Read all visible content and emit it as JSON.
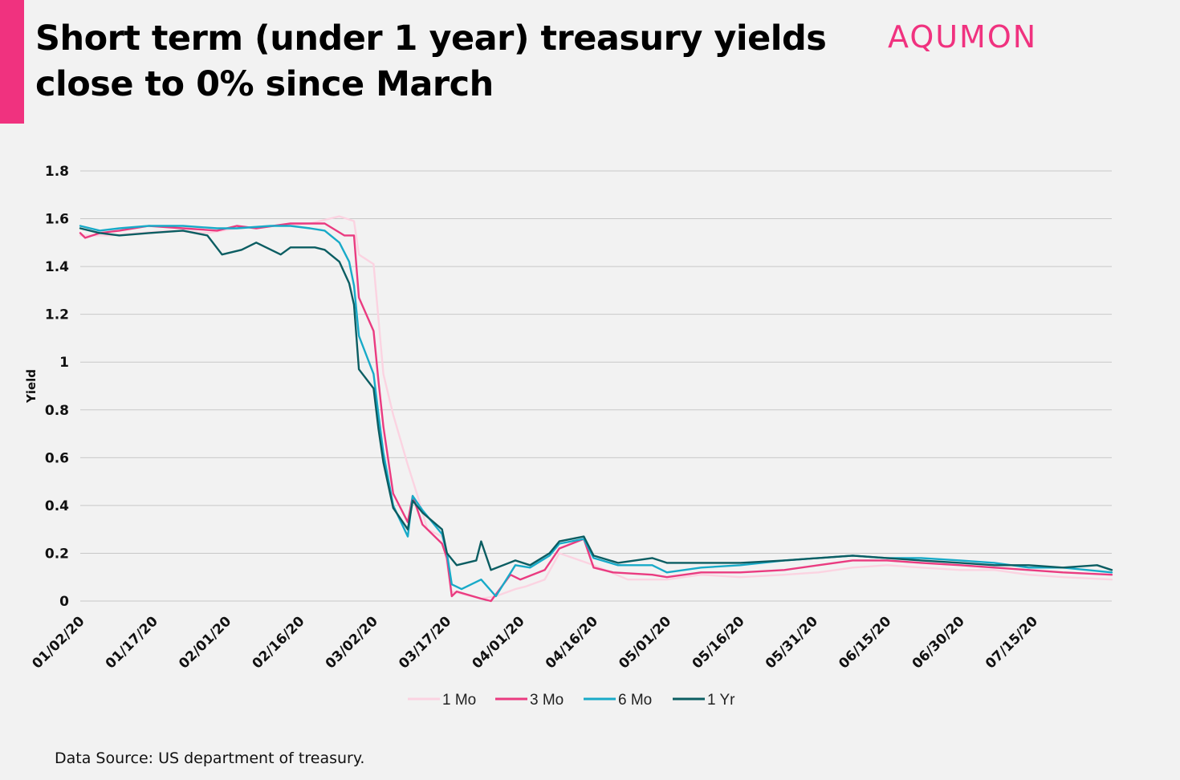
{
  "header": {
    "title": "Short term (under 1 year) treasury yields close to 0% since March",
    "logo": "AQUMON"
  },
  "footer": {
    "source": "Data Source: US department of treasury."
  },
  "colors": {
    "accent": "#f0327f",
    "1 Mo": "#fbd3e1",
    "3 Mo": "#ea3b80",
    "6 Mo": "#18aac8",
    "1 Yr": "#0b5d62",
    "grid": "#c8c8c8"
  },
  "chart_data": {
    "type": "line",
    "title": "Short term (under 1 year) treasury yields close to 0% since March",
    "xlabel": "",
    "ylabel": "Yield",
    "ylim": [
      0,
      1.8
    ],
    "yticks": [
      "0",
      "0.2",
      "0.4",
      "0.6",
      "0.8",
      "1",
      "1.2",
      "1.4",
      "1.6",
      "1.8"
    ],
    "xticks": [
      "01/02/20",
      "01/17/20",
      "02/01/20",
      "02/16/20",
      "03/02/20",
      "03/17/20",
      "04/01/20",
      "04/16/20",
      "05/01/20",
      "05/16/20",
      "05/31/20",
      "06/15/20",
      "06/30/20",
      "07/15/20"
    ],
    "xrange": [
      "01/02/20",
      "07/31/20"
    ],
    "grid": "horizontal",
    "legend_position": "bottom",
    "series": [
      {
        "name": "1 Mo",
        "points": [
          [
            "01/02/20",
            1.53
          ],
          [
            "01/08/20",
            1.53
          ],
          [
            "01/14/20",
            1.54
          ],
          [
            "01/21/20",
            1.55
          ],
          [
            "01/28/20",
            1.54
          ],
          [
            "02/03/20",
            1.56
          ],
          [
            "02/10/20",
            1.57
          ],
          [
            "02/18/20",
            1.58
          ],
          [
            "02/24/20",
            1.61
          ],
          [
            "02/27/20",
            1.59
          ],
          [
            "02/28/20",
            1.45
          ],
          [
            "03/02/20",
            1.41
          ],
          [
            "03/04/20",
            0.95
          ],
          [
            "03/06/20",
            0.78
          ],
          [
            "03/09/20",
            0.57
          ],
          [
            "03/11/20",
            0.44
          ],
          [
            "03/13/20",
            0.3
          ],
          [
            "03/16/20",
            0.27
          ],
          [
            "03/18/20",
            0.04
          ],
          [
            "03/24/20",
            0.01
          ],
          [
            "03/27/20",
            0.02
          ],
          [
            "03/31/20",
            0.05
          ],
          [
            "04/02/20",
            0.06
          ],
          [
            "04/06/20",
            0.09
          ],
          [
            "04/09/20",
            0.2
          ],
          [
            "04/16/20",
            0.15
          ],
          [
            "04/23/20",
            0.09
          ],
          [
            "05/01/20",
            0.09
          ],
          [
            "05/08/20",
            0.11
          ],
          [
            "05/16/20",
            0.1
          ],
          [
            "05/25/20",
            0.11
          ],
          [
            "06/01/20",
            0.12
          ],
          [
            "06/08/20",
            0.14
          ],
          [
            "06/15/20",
            0.15
          ],
          [
            "06/22/20",
            0.14
          ],
          [
            "06/30/20",
            0.13
          ],
          [
            "07/07/20",
            0.13
          ],
          [
            "07/14/20",
            0.11
          ],
          [
            "07/21/20",
            0.1
          ],
          [
            "07/31/20",
            0.09
          ]
        ]
      },
      {
        "name": "3 Mo",
        "points": [
          [
            "01/02/20",
            1.54
          ],
          [
            "01/03/20",
            1.52
          ],
          [
            "01/06/20",
            1.54
          ],
          [
            "01/10/20",
            1.55
          ],
          [
            "01/16/20",
            1.57
          ],
          [
            "01/23/20",
            1.56
          ],
          [
            "01/30/20",
            1.55
          ],
          [
            "02/03/20",
            1.57
          ],
          [
            "02/07/20",
            1.56
          ],
          [
            "02/14/20",
            1.58
          ],
          [
            "02/18/20",
            1.58
          ],
          [
            "02/21/20",
            1.58
          ],
          [
            "02/25/20",
            1.53
          ],
          [
            "02/27/20",
            1.53
          ],
          [
            "02/28/20",
            1.27
          ],
          [
            "03/02/20",
            1.13
          ],
          [
            "03/03/20",
            0.92
          ],
          [
            "03/04/20",
            0.73
          ],
          [
            "03/06/20",
            0.45
          ],
          [
            "03/09/20",
            0.33
          ],
          [
            "03/10/20",
            0.44
          ],
          [
            "03/12/20",
            0.32
          ],
          [
            "03/16/20",
            0.24
          ],
          [
            "03/17/20",
            0.18
          ],
          [
            "03/18/20",
            0.02
          ],
          [
            "03/19/20",
            0.04
          ],
          [
            "03/24/20",
            0.01
          ],
          [
            "03/26/20",
            0.0
          ],
          [
            "03/30/20",
            0.11
          ],
          [
            "04/01/20",
            0.09
          ],
          [
            "04/06/20",
            0.13
          ],
          [
            "04/09/20",
            0.22
          ],
          [
            "04/14/20",
            0.26
          ],
          [
            "04/16/20",
            0.14
          ],
          [
            "04/20/20",
            0.12
          ],
          [
            "04/28/20",
            0.11
          ],
          [
            "05/01/20",
            0.1
          ],
          [
            "05/08/20",
            0.12
          ],
          [
            "05/16/20",
            0.12
          ],
          [
            "05/25/20",
            0.13
          ],
          [
            "06/01/20",
            0.15
          ],
          [
            "06/08/20",
            0.17
          ],
          [
            "06/15/20",
            0.17
          ],
          [
            "06/22/20",
            0.16
          ],
          [
            "06/30/20",
            0.15
          ],
          [
            "07/07/20",
            0.14
          ],
          [
            "07/14/20",
            0.13
          ],
          [
            "07/21/20",
            0.12
          ],
          [
            "07/31/20",
            0.11
          ]
        ]
      },
      {
        "name": "6 Mo",
        "points": [
          [
            "01/02/20",
            1.57
          ],
          [
            "01/06/20",
            1.55
          ],
          [
            "01/10/20",
            1.56
          ],
          [
            "01/16/20",
            1.57
          ],
          [
            "01/23/20",
            1.57
          ],
          [
            "01/30/20",
            1.56
          ],
          [
            "02/03/20",
            1.56
          ],
          [
            "02/10/20",
            1.57
          ],
          [
            "02/14/20",
            1.57
          ],
          [
            "02/18/20",
            1.56
          ],
          [
            "02/21/20",
            1.55
          ],
          [
            "02/24/20",
            1.5
          ],
          [
            "02/26/20",
            1.42
          ],
          [
            "02/27/20",
            1.32
          ],
          [
            "02/28/20",
            1.11
          ],
          [
            "03/02/20",
            0.95
          ],
          [
            "03/03/20",
            0.78
          ],
          [
            "03/04/20",
            0.62
          ],
          [
            "03/06/20",
            0.4
          ],
          [
            "03/09/20",
            0.27
          ],
          [
            "03/10/20",
            0.44
          ],
          [
            "03/12/20",
            0.38
          ],
          [
            "03/16/20",
            0.28
          ],
          [
            "03/17/20",
            0.2
          ],
          [
            "03/18/20",
            0.07
          ],
          [
            "03/20/20",
            0.05
          ],
          [
            "03/24/20",
            0.09
          ],
          [
            "03/27/20",
            0.02
          ],
          [
            "03/31/20",
            0.15
          ],
          [
            "04/03/20",
            0.14
          ],
          [
            "04/07/20",
            0.19
          ],
          [
            "04/09/20",
            0.24
          ],
          [
            "04/14/20",
            0.26
          ],
          [
            "04/16/20",
            0.18
          ],
          [
            "04/21/20",
            0.15
          ],
          [
            "04/28/20",
            0.15
          ],
          [
            "05/01/20",
            0.12
          ],
          [
            "05/08/20",
            0.14
          ],
          [
            "05/16/20",
            0.15
          ],
          [
            "05/25/20",
            0.17
          ],
          [
            "06/01/20",
            0.18
          ],
          [
            "06/08/20",
            0.19
          ],
          [
            "06/15/20",
            0.18
          ],
          [
            "06/22/20",
            0.18
          ],
          [
            "06/30/20",
            0.17
          ],
          [
            "07/07/20",
            0.16
          ],
          [
            "07/14/20",
            0.14
          ],
          [
            "07/21/20",
            0.14
          ],
          [
            "07/31/20",
            0.12
          ]
        ]
      },
      {
        "name": "1 Yr",
        "points": [
          [
            "01/02/20",
            1.56
          ],
          [
            "01/06/20",
            1.54
          ],
          [
            "01/10/20",
            1.53
          ],
          [
            "01/16/20",
            1.54
          ],
          [
            "01/23/20",
            1.55
          ],
          [
            "01/28/20",
            1.53
          ],
          [
            "01/31/20",
            1.45
          ],
          [
            "02/04/20",
            1.47
          ],
          [
            "02/07/20",
            1.5
          ],
          [
            "02/12/20",
            1.45
          ],
          [
            "02/14/20",
            1.48
          ],
          [
            "02/19/20",
            1.48
          ],
          [
            "02/21/20",
            1.47
          ],
          [
            "02/24/20",
            1.42
          ],
          [
            "02/26/20",
            1.33
          ],
          [
            "02/27/20",
            1.24
          ],
          [
            "02/28/20",
            0.97
          ],
          [
            "03/02/20",
            0.89
          ],
          [
            "03/03/20",
            0.72
          ],
          [
            "03/04/20",
            0.58
          ],
          [
            "03/06/20",
            0.39
          ],
          [
            "03/09/20",
            0.3
          ],
          [
            "03/10/20",
            0.42
          ],
          [
            "03/12/20",
            0.37
          ],
          [
            "03/16/20",
            0.3
          ],
          [
            "03/17/20",
            0.2
          ],
          [
            "03/19/20",
            0.15
          ],
          [
            "03/23/20",
            0.17
          ],
          [
            "03/24/20",
            0.25
          ],
          [
            "03/26/20",
            0.13
          ],
          [
            "03/31/20",
            0.17
          ],
          [
            "04/03/20",
            0.15
          ],
          [
            "04/07/20",
            0.2
          ],
          [
            "04/09/20",
            0.25
          ],
          [
            "04/14/20",
            0.27
          ],
          [
            "04/16/20",
            0.19
          ],
          [
            "04/21/20",
            0.16
          ],
          [
            "04/28/20",
            0.18
          ],
          [
            "05/01/20",
            0.16
          ],
          [
            "05/08/20",
            0.16
          ],
          [
            "05/16/20",
            0.16
          ],
          [
            "05/25/20",
            0.17
          ],
          [
            "06/01/20",
            0.18
          ],
          [
            "06/08/20",
            0.19
          ],
          [
            "06/15/20",
            0.18
          ],
          [
            "06/22/20",
            0.17
          ],
          [
            "06/30/20",
            0.16
          ],
          [
            "07/07/20",
            0.15
          ],
          [
            "07/14/20",
            0.15
          ],
          [
            "07/21/20",
            0.14
          ],
          [
            "07/28/20",
            0.15
          ],
          [
            "07/31/20",
            0.13
          ]
        ]
      }
    ]
  }
}
